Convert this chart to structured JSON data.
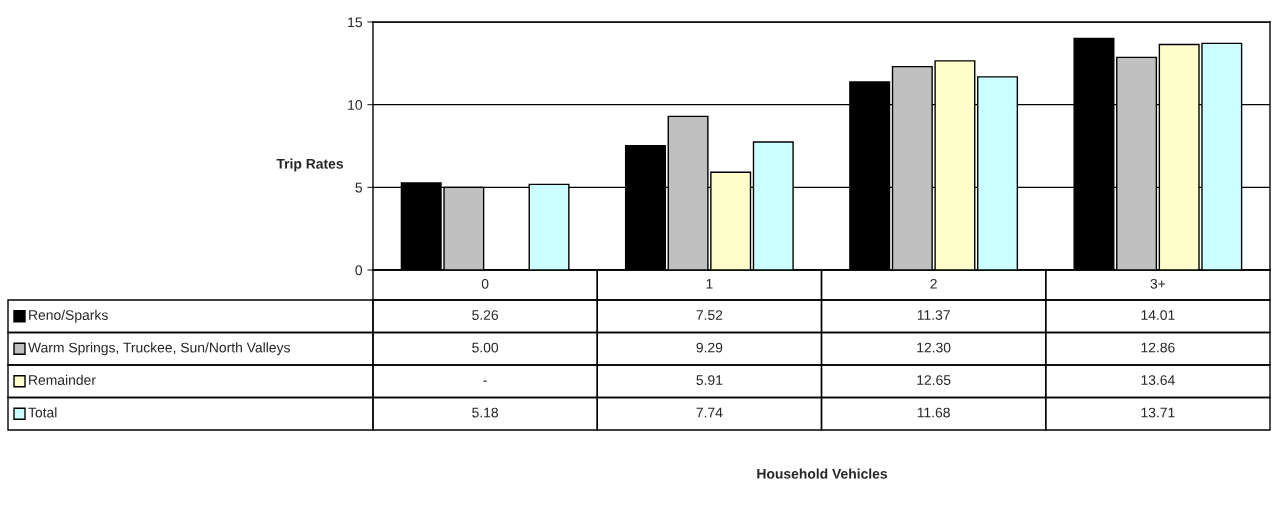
{
  "chart_data": {
    "type": "bar",
    "ylabel": "Trip Rates",
    "annotations": [
      "Household Vehicles"
    ],
    "categories": [
      "0",
      "1",
      "2",
      "3+"
    ],
    "series": [
      {
        "name": "Reno/Sparks",
        "color": "#000000",
        "values": [
          5.26,
          7.52,
          11.37,
          14.01
        ],
        "value_labels": [
          "5.26",
          "7.52",
          "11.37",
          "14.01"
        ]
      },
      {
        "name": "Warm Springs, Truckee, Sun/North Valleys",
        "color": "#c0c0c0",
        "values": [
          5.0,
          9.29,
          12.3,
          12.86
        ],
        "value_labels": [
          "5.00",
          "9.29",
          "12.30",
          "12.86"
        ]
      },
      {
        "name": "Remainder",
        "color": "#ffffcc",
        "values": [
          null,
          5.91,
          12.65,
          13.64
        ],
        "value_labels": [
          "-",
          "5.91",
          "12.65",
          "13.64"
        ]
      },
      {
        "name": "Total",
        "color": "#ccffff",
        "values": [
          5.18,
          7.74,
          11.68,
          13.71
        ],
        "value_labels": [
          "5.18",
          "7.74",
          "11.68",
          "13.71"
        ]
      }
    ],
    "ylim": [
      0,
      15
    ],
    "yticks": [
      0,
      5,
      10,
      15
    ],
    "grid": "y",
    "legend": "bottom left"
  }
}
